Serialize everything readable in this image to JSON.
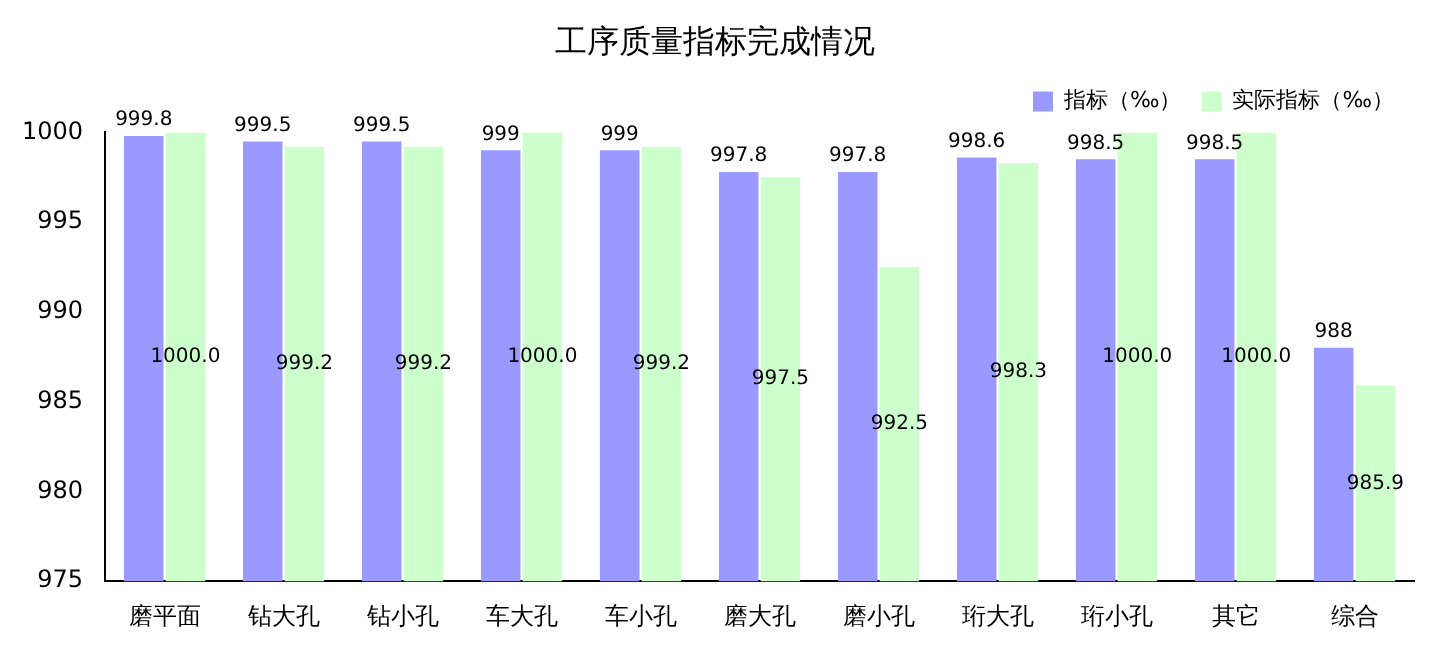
{
  "chart_data": {
    "type": "bar",
    "title": "工序质量指标完成情况",
    "categories": [
      "磨平面",
      "钻大孔",
      "钻小孔",
      "车大孔",
      "车小孔",
      "磨大孔",
      "磨小孔",
      "珩大孔",
      "珩小孔",
      "其它",
      "综合"
    ],
    "series": [
      {
        "name": "指标（‰）",
        "color": "#9999ff",
        "values": [
          999.8,
          999.5,
          999.5,
          999,
          999,
          997.8,
          997.8,
          998.6,
          998.5,
          998.5,
          988
        ],
        "value_labels": [
          "999.8",
          "999.5",
          "999.5",
          "999",
          "999",
          "997.8",
          "997.8",
          "998.6",
          "998.5",
          "998.5",
          "988"
        ]
      },
      {
        "name": "实际指标（‰）",
        "color": "#ccffcc",
        "values": [
          1000.0,
          999.2,
          999.2,
          1000.0,
          999.2,
          997.5,
          992.5,
          998.3,
          1000.0,
          1000.0,
          985.9
        ],
        "value_labels": [
          "1000.0",
          "999.2",
          "999.2",
          "1000.0",
          "999.2",
          "997.5",
          "992.5",
          "998.3",
          "1000.0",
          "1000.0",
          "985.9"
        ]
      }
    ],
    "ylim": [
      975,
      1000
    ],
    "yticks": [
      975,
      980,
      985,
      990,
      995,
      1000
    ],
    "grid": false,
    "legend": "top right"
  }
}
